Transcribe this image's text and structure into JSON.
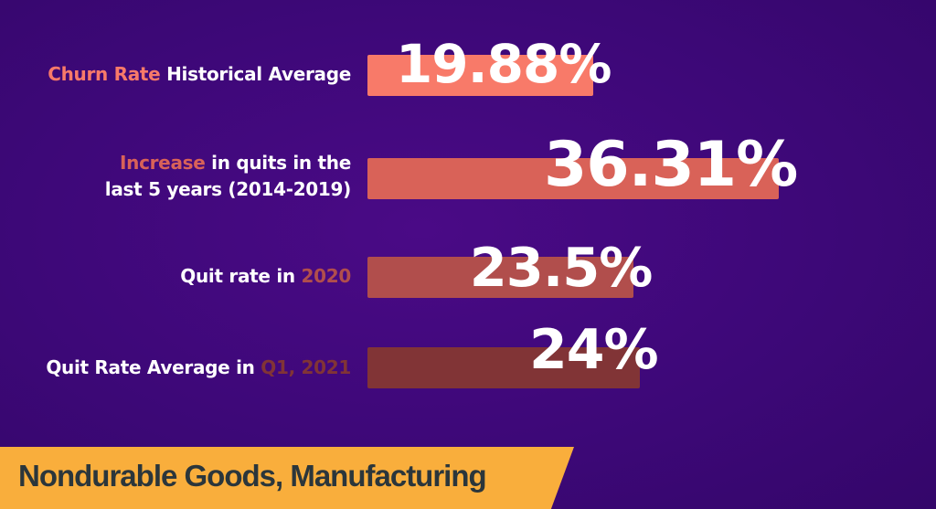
{
  "chart_data": {
    "type": "bar",
    "orientation": "horizontal",
    "categories": [
      "Churn Rate Historical Average",
      "Increase in quits in the last 5 years (2014-2019)",
      "Quit rate in 2020",
      "Quit Rate Average in Q1, 2021"
    ],
    "values": [
      19.88,
      36.31,
      23.5,
      24
    ],
    "value_labels": [
      "19.88%",
      "36.31%",
      "23.5%",
      "24%"
    ],
    "bar_colors": [
      "#f87a69",
      "#d96258",
      "#b14e4c",
      "#813436"
    ],
    "label_parts": [
      [
        {
          "t": "Churn Rate",
          "c": "#f87a69"
        },
        {
          "t": " Historical Average",
          "c": "#ffffff"
        }
      ],
      [
        {
          "t": "Increase",
          "c": "#d96258"
        },
        {
          "t": " in quits in the",
          "c": "#ffffff"
        },
        {
          "t": "\nlast 5 years (2014-2019)",
          "c": "#ffffff"
        }
      ],
      [
        {
          "t": "Quit rate in ",
          "c": "#ffffff"
        },
        {
          "t": "2020",
          "c": "#b14e4c"
        }
      ],
      [
        {
          "t": "Quit Rate Average in ",
          "c": "#ffffff"
        },
        {
          "t": "Q1, 2021",
          "c": "#813436"
        }
      ]
    ],
    "grid": false,
    "title": ""
  },
  "banner": {
    "text": "Nondurable Goods, Manufacturing",
    "color": "#f9ae3c"
  },
  "background_color": "#3d0878"
}
